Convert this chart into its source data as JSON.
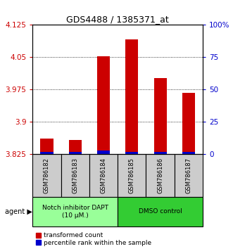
{
  "title": "GDS4488 / 1385371_at",
  "samples": [
    "GSM786182",
    "GSM786183",
    "GSM786184",
    "GSM786185",
    "GSM786186",
    "GSM786187"
  ],
  "transformed_counts": [
    3.862,
    3.858,
    4.052,
    4.092,
    4.002,
    3.968
  ],
  "percentile_ranks": [
    2,
    2,
    3,
    2,
    2,
    2
  ],
  "ymin": 3.825,
  "ymax": 4.125,
  "yticks": [
    3.825,
    3.9,
    3.975,
    4.05,
    4.125
  ],
  "ytick_labels": [
    "3.825",
    "3.9",
    "3.975",
    "4.05",
    "4.125"
  ],
  "right_yticks": [
    0,
    25,
    50,
    75,
    100
  ],
  "right_ytick_labels": [
    "0",
    "25",
    "50",
    "75",
    "100%"
  ],
  "bar_color_red": "#cc0000",
  "bar_color_blue": "#0000cc",
  "agent_groups": [
    {
      "label": "Notch inhibitor DAPT\n(10 μM.)",
      "samples": [
        0,
        1,
        2
      ],
      "color": "#99ff99"
    },
    {
      "label": "DMSO control",
      "samples": [
        3,
        4,
        5
      ],
      "color": "#33cc33"
    }
  ],
  "legend_red": "transformed count",
  "legend_blue": "percentile rank within the sample",
  "agent_label": "agent",
  "bar_width": 0.45,
  "blue_bar_width": 0.45,
  "sample_box_color": "#cccccc",
  "background_color": "#ffffff",
  "title_fontsize": 9,
  "axis_fontsize": 7.5,
  "sample_fontsize": 6,
  "legend_fontsize": 6.5
}
